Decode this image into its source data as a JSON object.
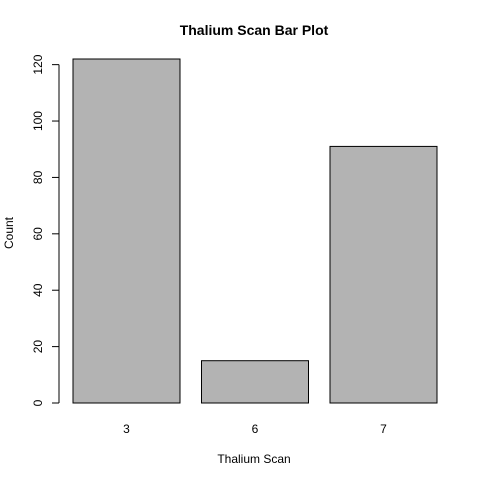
{
  "chart_data": {
    "type": "bar",
    "title": "Thalium Scan Bar Plot",
    "xlabel": "Thalium Scan",
    "ylabel": "Count",
    "categories": [
      "3",
      "6",
      "7"
    ],
    "values": [
      122,
      15,
      91
    ],
    "ylim": [
      0,
      125
    ],
    "yticks": [
      "0",
      "20",
      "40",
      "60",
      "80",
      "100",
      "120"
    ],
    "grid": false,
    "colors": {
      "bar_fill": "#b3b3b3",
      "bar_stroke": "#000000",
      "axis": "#000000"
    }
  }
}
